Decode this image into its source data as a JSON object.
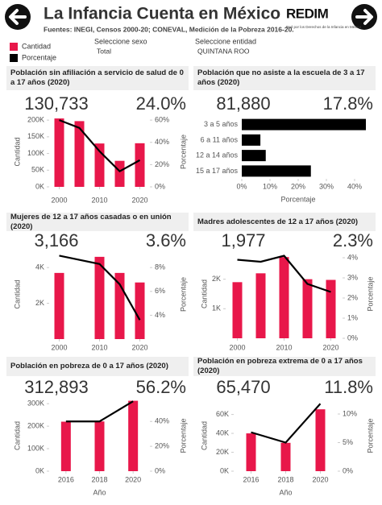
{
  "header": {
    "title": "La Infancia Cuenta en México",
    "subtitle": "Fuentes: INEGI, Censos 2000-20; CONEVAL, Medición de la Pobreza 2016-20.",
    "logo": "REDIM",
    "tagline": "Red por los Derechos de la Infancia en México"
  },
  "legend": [
    {
      "name": "Cantidad",
      "color": "#e8174a"
    },
    {
      "name": "Porcentaje",
      "color": "#000000"
    }
  ],
  "filters": [
    {
      "label": "Seleccione sexo",
      "value": "Total"
    },
    {
      "label": "Seleccione entidad",
      "value": "QUINTANA ROO"
    }
  ],
  "chart_data": [
    {
      "type": "combo",
      "title": "Población sin afiliación a servicio de salud de 0 a 17 años (2020)",
      "kpis": [
        "130,733",
        "24.0%"
      ],
      "x": [
        2000,
        2005,
        2010,
        2015,
        2020
      ],
      "xlim": [
        1997.5,
        2022.5
      ],
      "xticks": [
        2000,
        2010,
        2020
      ],
      "ylim": [
        0,
        210000
      ],
      "yticks": [
        {
          "value": 0,
          "label": "0K"
        },
        {
          "value": 50000,
          "label": "50K"
        },
        {
          "value": 100000,
          "label": "100K"
        },
        {
          "value": 150000,
          "label": "150K"
        },
        {
          "value": 200000,
          "label": "200K"
        }
      ],
      "y2lim": [
        0,
        63
      ],
      "y2ticks": [
        {
          "value": 0,
          "label": "0%"
        },
        {
          "value": 20,
          "label": "20%"
        },
        {
          "value": 40,
          "label": "40%"
        },
        {
          "value": 60,
          "label": "60%"
        }
      ],
      "ylabel": "Cantidad",
      "y2label": "Porcentaje",
      "series": [
        {
          "color": "#e8174a",
          "values": [
            205000,
            197000,
            130000,
            78000,
            130733
          ]
        },
        {
          "color": "#000000",
          "axis": "y2",
          "values": [
            60,
            53,
            32,
            14,
            24.0
          ]
        }
      ]
    },
    {
      "type": "hbar",
      "title": "Población que no asiste a la escuela de 3 a 17 años (2020)",
      "kpis": [
        "81,880",
        "17.8%"
      ],
      "categories": [
        "3 a 5 años",
        "6 a 11 años",
        "12 a 14 años",
        "15 a 17 años"
      ],
      "values": [
        44,
        6.6,
        8.5,
        24.5
      ],
      "color": "#000000",
      "xlim": [
        0,
        45
      ],
      "xticks": [
        {
          "value": 0,
          "label": "0%"
        },
        {
          "value": 10,
          "label": "10%"
        },
        {
          "value": 20,
          "label": "20%"
        },
        {
          "value": 30,
          "label": "30%"
        },
        {
          "value": 40,
          "label": "40%"
        }
      ],
      "xlabel": "Porcentaje"
    },
    {
      "type": "combo",
      "title": "Mujeres de 12 a 17 años casadas o en unión (2020)",
      "kpis": [
        "3,166",
        "3.6%"
      ],
      "x": [
        2000,
        2010,
        2015,
        2020
      ],
      "xlim": [
        1997.5,
        2022.5
      ],
      "xticks": [
        2000,
        2010,
        2020
      ],
      "ylim": [
        0,
        5000
      ],
      "yticks": [
        {
          "value": 2000,
          "label": "2K"
        },
        {
          "value": 4000,
          "label": "4K"
        }
      ],
      "y2lim": [
        2,
        9.5
      ],
      "y2ticks": [
        {
          "value": 4,
          "label": "4%"
        },
        {
          "value": 6,
          "label": "6%"
        },
        {
          "value": 8,
          "label": "8%"
        }
      ],
      "ylabel": "Cantidad",
      "y2label": "Porcentaje",
      "series": [
        {
          "color": "#e8174a",
          "values": [
            3700,
            4600,
            3700,
            3166
          ]
        },
        {
          "color": "#000000",
          "axis": "y2",
          "values": [
            9.0,
            8.3,
            6.6,
            3.6
          ]
        }
      ]
    },
    {
      "type": "combo",
      "title": "Madres adolescentes de 12 a 17 años (2020)",
      "kpis": [
        "1,977",
        "2.3%"
      ],
      "x": [
        2000,
        2005,
        2010,
        2015,
        2020
      ],
      "xlim": [
        1997.5,
        2022.5
      ],
      "xticks": [
        2000,
        2010,
        2020
      ],
      "ylim": [
        0,
        3000
      ],
      "yticks": [
        {
          "value": 1000,
          "label": "1K"
        },
        {
          "value": 2000,
          "label": "2K"
        }
      ],
      "y2lim": [
        0,
        4.4
      ],
      "y2ticks": [
        {
          "value": 0,
          "label": "0%"
        },
        {
          "value": 1,
          "label": "1%"
        },
        {
          "value": 2,
          "label": "2%"
        },
        {
          "value": 3,
          "label": "3%"
        },
        {
          "value": 4,
          "label": "4%"
        }
      ],
      "ylabel": "Cantidad",
      "y2label": "Porcentaje",
      "series": [
        {
          "color": "#e8174a",
          "values": [
            1900,
            2200,
            2750,
            2000,
            1977
          ]
        },
        {
          "color": "#000000",
          "axis": "y2",
          "values": [
            3.9,
            3.8,
            4.1,
            2.7,
            2.3
          ]
        }
      ]
    },
    {
      "type": "combo",
      "title": "Población en pobreza de 0 a 17 años (2020)",
      "kpis": [
        "312,893",
        "56.2%"
      ],
      "x": [
        2016,
        2018,
        2020
      ],
      "xlim": [
        2015,
        2021
      ],
      "xticks": [
        2016,
        2018,
        2020
      ],
      "xlabel": "Año",
      "ylim": [
        0,
        315000
      ],
      "yticks": [
        {
          "value": 0,
          "label": "0K"
        },
        {
          "value": 100000,
          "label": "100K"
        },
        {
          "value": 200000,
          "label": "200K"
        },
        {
          "value": 300000,
          "label": "300K"
        }
      ],
      "y2lim": [
        0,
        57
      ],
      "y2ticks": [
        {
          "value": 0,
          "label": "0%"
        },
        {
          "value": 20,
          "label": "20%"
        },
        {
          "value": 40,
          "label": "40%"
        }
      ],
      "ylabel": "Cantidad",
      "y2label": "Porcentaje",
      "series": [
        {
          "color": "#e8174a",
          "values": [
            220000,
            221000,
            312893
          ]
        },
        {
          "color": "#000000",
          "axis": "y2",
          "values": [
            40,
            40,
            56.2
          ]
        }
      ]
    },
    {
      "type": "combo",
      "title": "Población en pobreza extrema de 0 a 17 años (2020)",
      "kpis": [
        "65,470",
        "11.8%"
      ],
      "x": [
        2016,
        2018,
        2020
      ],
      "xlim": [
        2015,
        2021
      ],
      "xticks": [
        2016,
        2018,
        2020
      ],
      "xlabel": "Año",
      "ylim": [
        0,
        75000
      ],
      "yticks": [
        {
          "value": 0,
          "label": "0K"
        },
        {
          "value": 20000,
          "label": "20K"
        },
        {
          "value": 40000,
          "label": "40K"
        },
        {
          "value": 60000,
          "label": "60K"
        }
      ],
      "y2lim": [
        0,
        12.4
      ],
      "y2ticks": [
        {
          "value": 0,
          "label": "0%"
        },
        {
          "value": 5,
          "label": "5%"
        },
        {
          "value": 10,
          "label": "10%"
        }
      ],
      "ylabel": "Cantidad",
      "y2label": "Porcentaje",
      "series": [
        {
          "color": "#e8174a",
          "values": [
            40000,
            30000,
            65470
          ]
        },
        {
          "color": "#000000",
          "axis": "y2",
          "values": [
            6.8,
            5.0,
            11.8
          ]
        }
      ]
    }
  ]
}
